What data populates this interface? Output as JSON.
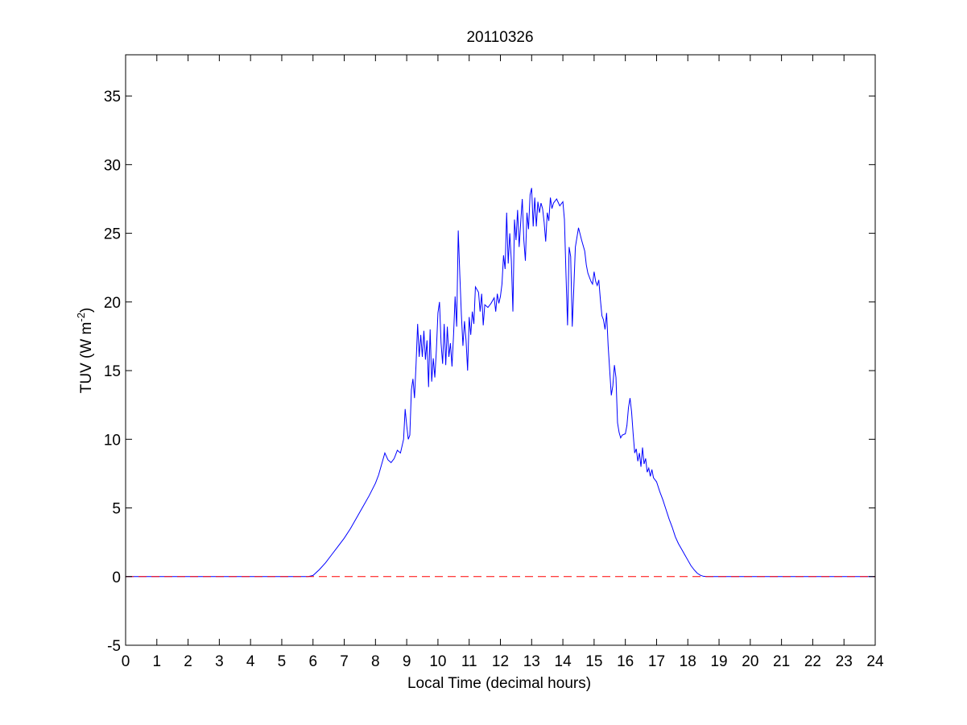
{
  "chart_data": {
    "type": "line",
    "title": "20110326",
    "xlabel": "Local Time (decimal hours)",
    "ylabel": {
      "text": "TUV (W m",
      "superscript": "-2",
      "close": ")"
    },
    "xlim": [
      0,
      24
    ],
    "ylim": [
      -5,
      38
    ],
    "x_ticks": [
      0,
      1,
      2,
      3,
      4,
      5,
      6,
      7,
      8,
      9,
      10,
      11,
      12,
      13,
      14,
      15,
      16,
      17,
      18,
      19,
      20,
      21,
      22,
      23,
      24
    ],
    "y_ticks": [
      -5,
      0,
      5,
      10,
      15,
      20,
      25,
      30,
      35
    ],
    "grid": false,
    "legend": "none",
    "series": [
      {
        "color": "#0000ff",
        "style": "solid",
        "points": [
          [
            0,
            0
          ],
          [
            5.85,
            0
          ],
          [
            6.0,
            0.08
          ],
          [
            6.2,
            0.5
          ],
          [
            6.4,
            1.0
          ],
          [
            6.6,
            1.6
          ],
          [
            6.8,
            2.2
          ],
          [
            7.0,
            2.8
          ],
          [
            7.2,
            3.5
          ],
          [
            7.4,
            4.3
          ],
          [
            7.6,
            5.1
          ],
          [
            7.8,
            5.9
          ],
          [
            8.0,
            6.8
          ],
          [
            8.1,
            7.4
          ],
          [
            8.2,
            8.2
          ],
          [
            8.3,
            9.0
          ],
          [
            8.4,
            8.5
          ],
          [
            8.5,
            8.3
          ],
          [
            8.6,
            8.6
          ],
          [
            8.7,
            9.2
          ],
          [
            8.8,
            9.0
          ],
          [
            8.9,
            10.0
          ],
          [
            8.95,
            12.2
          ],
          [
            9.0,
            11.0
          ],
          [
            9.05,
            10.0
          ],
          [
            9.1,
            10.3
          ],
          [
            9.15,
            13.6
          ],
          [
            9.2,
            14.4
          ],
          [
            9.25,
            13.0
          ],
          [
            9.3,
            15.5
          ],
          [
            9.35,
            18.4
          ],
          [
            9.4,
            16.0
          ],
          [
            9.45,
            17.6
          ],
          [
            9.5,
            16.0
          ],
          [
            9.55,
            17.9
          ],
          [
            9.6,
            15.8
          ],
          [
            9.65,
            17.2
          ],
          [
            9.7,
            13.8
          ],
          [
            9.75,
            18.0
          ],
          [
            9.8,
            14.2
          ],
          [
            9.85,
            15.9
          ],
          [
            9.9,
            14.5
          ],
          [
            9.95,
            16.5
          ],
          [
            10.0,
            19.2
          ],
          [
            10.05,
            20.0
          ],
          [
            10.1,
            17.0
          ],
          [
            10.15,
            15.5
          ],
          [
            10.2,
            18.4
          ],
          [
            10.25,
            15.4
          ],
          [
            10.3,
            18.2
          ],
          [
            10.35,
            16.0
          ],
          [
            10.4,
            17.0
          ],
          [
            10.45,
            15.3
          ],
          [
            10.5,
            17.6
          ],
          [
            10.55,
            20.4
          ],
          [
            10.6,
            18.2
          ],
          [
            10.65,
            25.2
          ],
          [
            10.7,
            22.0
          ],
          [
            10.75,
            19.1
          ],
          [
            10.8,
            16.8
          ],
          [
            10.85,
            18.6
          ],
          [
            10.9,
            17.2
          ],
          [
            10.95,
            15.0
          ],
          [
            11.0,
            18.9
          ],
          [
            11.05,
            17.6
          ],
          [
            11.1,
            19.3
          ],
          [
            11.15,
            18.4
          ],
          [
            11.2,
            21.1
          ],
          [
            11.3,
            20.7
          ],
          [
            11.35,
            19.3
          ],
          [
            11.4,
            20.6
          ],
          [
            11.45,
            18.3
          ],
          [
            11.5,
            19.8
          ],
          [
            11.6,
            19.6
          ],
          [
            11.7,
            19.9
          ],
          [
            11.8,
            20.3
          ],
          [
            11.85,
            19.3
          ],
          [
            11.9,
            20.6
          ],
          [
            11.95,
            19.9
          ],
          [
            12.0,
            20.4
          ],
          [
            12.05,
            21.3
          ],
          [
            12.1,
            23.4
          ],
          [
            12.15,
            22.4
          ],
          [
            12.2,
            26.5
          ],
          [
            12.25,
            22.8
          ],
          [
            12.3,
            25.0
          ],
          [
            12.35,
            23.0
          ],
          [
            12.4,
            19.3
          ],
          [
            12.45,
            26.0
          ],
          [
            12.5,
            24.5
          ],
          [
            12.55,
            26.7
          ],
          [
            12.6,
            24.0
          ],
          [
            12.65,
            25.8
          ],
          [
            12.7,
            27.5
          ],
          [
            12.75,
            24.5
          ],
          [
            12.8,
            23.0
          ],
          [
            12.85,
            26.5
          ],
          [
            12.9,
            25.3
          ],
          [
            12.95,
            27.8
          ],
          [
            13.0,
            28.3
          ],
          [
            13.05,
            25.5
          ],
          [
            13.1,
            27.6
          ],
          [
            13.15,
            25.5
          ],
          [
            13.2,
            27.3
          ],
          [
            13.25,
            26.5
          ],
          [
            13.3,
            27.2
          ],
          [
            13.35,
            26.8
          ],
          [
            13.4,
            25.8
          ],
          [
            13.45,
            24.4
          ],
          [
            13.5,
            26.5
          ],
          [
            13.55,
            25.9
          ],
          [
            13.6,
            27.6
          ],
          [
            13.65,
            26.8
          ],
          [
            13.7,
            27.2
          ],
          [
            13.8,
            27.5
          ],
          [
            13.9,
            27.0
          ],
          [
            14.0,
            27.3
          ],
          [
            14.05,
            26.0
          ],
          [
            14.1,
            22.0
          ],
          [
            14.15,
            18.3
          ],
          [
            14.2,
            24.0
          ],
          [
            14.25,
            23.3
          ],
          [
            14.3,
            18.2
          ],
          [
            14.35,
            21.0
          ],
          [
            14.4,
            24.0
          ],
          [
            14.5,
            25.4
          ],
          [
            14.6,
            24.5
          ],
          [
            14.7,
            23.7
          ],
          [
            14.75,
            22.7
          ],
          [
            14.8,
            22.1
          ],
          [
            14.9,
            21.5
          ],
          [
            14.95,
            21.3
          ],
          [
            15.0,
            22.2
          ],
          [
            15.05,
            21.5
          ],
          [
            15.1,
            21.2
          ],
          [
            15.15,
            21.6
          ],
          [
            15.2,
            20.2
          ],
          [
            15.25,
            19.0
          ],
          [
            15.3,
            18.7
          ],
          [
            15.35,
            18.0
          ],
          [
            15.4,
            19.2
          ],
          [
            15.45,
            16.8
          ],
          [
            15.5,
            15.0
          ],
          [
            15.55,
            13.2
          ],
          [
            15.6,
            13.9
          ],
          [
            15.65,
            15.4
          ],
          [
            15.7,
            14.5
          ],
          [
            15.75,
            11.2
          ],
          [
            15.8,
            10.5
          ],
          [
            15.85,
            10.1
          ],
          [
            15.9,
            10.3
          ],
          [
            16.0,
            10.4
          ],
          [
            16.05,
            11.0
          ],
          [
            16.1,
            12.3
          ],
          [
            16.15,
            13.0
          ],
          [
            16.2,
            12.0
          ],
          [
            16.25,
            10.4
          ],
          [
            16.3,
            9.0
          ],
          [
            16.35,
            9.3
          ],
          [
            16.4,
            8.4
          ],
          [
            16.45,
            9.0
          ],
          [
            16.5,
            8.0
          ],
          [
            16.55,
            9.4
          ],
          [
            16.6,
            8.2
          ],
          [
            16.65,
            8.6
          ],
          [
            16.7,
            7.6
          ],
          [
            16.75,
            7.9
          ],
          [
            16.8,
            7.3
          ],
          [
            16.85,
            7.8
          ],
          [
            16.9,
            7.2
          ],
          [
            17.0,
            6.9
          ],
          [
            17.1,
            6.2
          ],
          [
            17.2,
            5.6
          ],
          [
            17.3,
            4.9
          ],
          [
            17.4,
            4.2
          ],
          [
            17.5,
            3.6
          ],
          [
            17.6,
            2.9
          ],
          [
            17.7,
            2.4
          ],
          [
            17.8,
            2.0
          ],
          [
            17.9,
            1.6
          ],
          [
            18.0,
            1.2
          ],
          [
            18.1,
            0.8
          ],
          [
            18.2,
            0.5
          ],
          [
            18.3,
            0.25
          ],
          [
            18.4,
            0.1
          ],
          [
            18.5,
            0.02
          ],
          [
            18.6,
            0
          ],
          [
            24,
            0
          ]
        ]
      },
      {
        "color": "#ff0000",
        "style": "dashed",
        "points": [
          [
            0,
            0
          ],
          [
            24,
            0
          ]
        ]
      }
    ]
  }
}
